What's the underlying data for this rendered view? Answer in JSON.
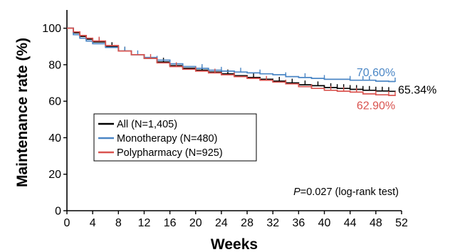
{
  "chart_data": {
    "type": "line",
    "title": "",
    "xlabel": "Weeks",
    "ylabel": "Maintenance rate (%)",
    "xlim": [
      0,
      52
    ],
    "ylim": [
      0,
      110
    ],
    "xticks": [
      0,
      4,
      8,
      12,
      16,
      20,
      24,
      28,
      32,
      36,
      40,
      44,
      48,
      52
    ],
    "yticks": [
      0,
      20,
      40,
      60,
      80,
      100
    ],
    "grid": false,
    "legend_position": "lower-left",
    "annotation": {
      "italic": "P",
      "text": "=0.027 (log-rank test)"
    },
    "series": [
      {
        "name": "All (N=1,405)",
        "color": "#000000",
        "end_label": "65.34%",
        "end_label_color": "#000000",
        "x": [
          0,
          1,
          2,
          3,
          4,
          6,
          8,
          10,
          12,
          14,
          16,
          18,
          20,
          22,
          24,
          26,
          28,
          30,
          32,
          34,
          36,
          38,
          40,
          42,
          44,
          46,
          48,
          50,
          51
        ],
        "y": [
          100,
          97.5,
          95.5,
          94,
          92.5,
          90,
          87.5,
          85.5,
          83.5,
          81.5,
          79.5,
          78,
          77,
          76,
          75,
          74,
          73,
          72,
          71,
          70,
          69,
          68.5,
          67.5,
          67,
          66.5,
          66,
          65.6,
          65.4,
          65.34
        ],
        "censor_x": [
          3,
          5,
          7,
          9,
          12,
          15,
          18,
          21,
          25,
          29,
          33,
          35,
          37,
          39,
          41,
          42,
          43,
          44,
          45,
          46,
          47,
          48,
          49,
          50
        ]
      },
      {
        "name": "Monotherapy (N=480)",
        "color": "#4a86c5",
        "end_label": "70.60%",
        "end_label_color": "#4a86c5",
        "x": [
          0,
          1,
          2,
          3,
          4,
          6,
          8,
          10,
          12,
          14,
          16,
          18,
          20,
          22,
          24,
          26,
          28,
          30,
          32,
          34,
          36,
          38,
          40,
          42,
          44,
          46,
          48,
          50,
          51
        ],
        "y": [
          100,
          96.5,
          94.5,
          93,
          91.5,
          89.5,
          87.5,
          85.5,
          84,
          82.5,
          80.5,
          79,
          78,
          77,
          76.5,
          76,
          75.5,
          75,
          74.5,
          73.5,
          73,
          72.5,
          72,
          72,
          71.5,
          71.5,
          71,
          70.8,
          70.6
        ],
        "censor_x": [
          4,
          6,
          9,
          11,
          14,
          16,
          21,
          24,
          27,
          30,
          34,
          37,
          40,
          44,
          46,
          47,
          51
        ]
      },
      {
        "name": "Polypharmacy (N=925)",
        "color": "#d9534f",
        "end_label": "62.90%",
        "end_label_color": "#d9534f",
        "x": [
          0,
          1,
          2,
          3,
          4,
          6,
          8,
          10,
          12,
          14,
          16,
          18,
          20,
          22,
          24,
          26,
          28,
          30,
          32,
          34,
          36,
          38,
          40,
          42,
          44,
          46,
          48,
          50,
          51
        ],
        "y": [
          100,
          98,
          96,
          94.5,
          93,
          90.5,
          87.5,
          85.5,
          83.5,
          81,
          79,
          77.5,
          76.5,
          75.5,
          74.5,
          73.5,
          72.5,
          71.5,
          70.5,
          69.5,
          68,
          67,
          66,
          65.5,
          65,
          64,
          63.5,
          63.2,
          62.9
        ],
        "censor_x": [
          2,
          5,
          8,
          10,
          13,
          17,
          20,
          23,
          26,
          31,
          34,
          38,
          41,
          43,
          45,
          48,
          50,
          51
        ]
      }
    ]
  }
}
